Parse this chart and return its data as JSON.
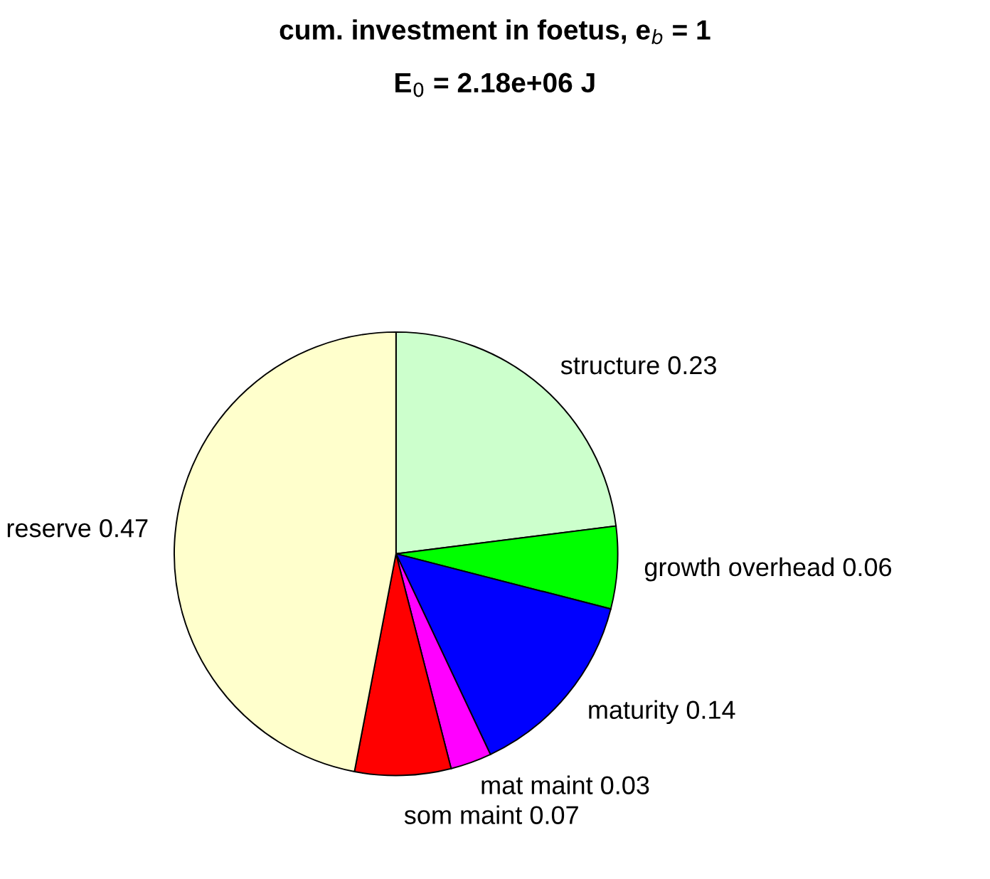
{
  "chart_data": {
    "type": "pie",
    "title": "cum. investment in foetus, e$_{b}$ = 1",
    "subtitle": "E$_{0}$ = 2.18e+06 J",
    "categories": [
      "structure 0.23",
      "growth overhead 0.06",
      "maturity 0.14",
      "mat maint 0.03",
      "som maint 0.07",
      "reserve 0.47"
    ],
    "values": [
      0.23,
      0.06,
      0.14,
      0.03,
      0.07,
      0.47
    ],
    "colors": [
      "#ccffcc",
      "#00ff00",
      "#0000ff",
      "#ff00ff",
      "#ff0000",
      "#ffffcc"
    ]
  }
}
